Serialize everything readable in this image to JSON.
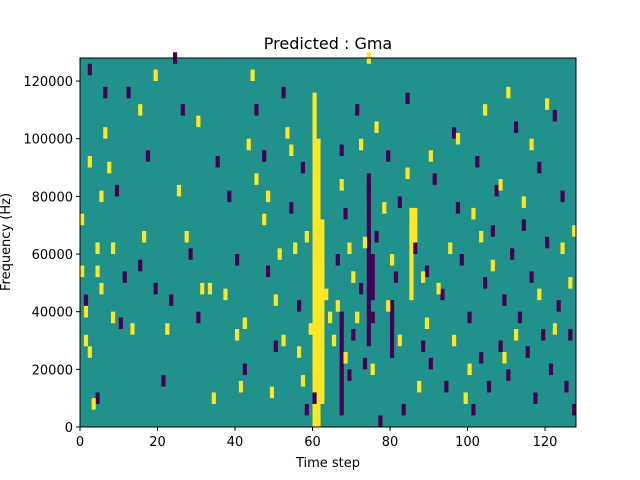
{
  "chart_data": {
    "type": "heatmap",
    "title": "Predicted : Gma",
    "xlabel": "Time step",
    "ylabel": "Frequency (Hz)",
    "xlim": [
      0,
      128
    ],
    "ylim": [
      0,
      128000
    ],
    "xticks": [
      0,
      20,
      40,
      60,
      80,
      100,
      120
    ],
    "yticks": [
      0,
      20000,
      40000,
      60000,
      80000,
      100000,
      120000
    ],
    "grid": false,
    "legend": "none",
    "background_value_color": "#21918c",
    "high_value_color": "#fde725",
    "low_value_color": "#440154",
    "cell_height_hz": 4000,
    "cells_high": [
      [
        0,
        70
      ],
      [
        0,
        52
      ],
      [
        1,
        28
      ],
      [
        1,
        38
      ],
      [
        2,
        90
      ],
      [
        2,
        24
      ],
      [
        3,
        6
      ],
      [
        4,
        52
      ],
      [
        4,
        60
      ],
      [
        5,
        46
      ],
      [
        5,
        78
      ],
      [
        6,
        100
      ],
      [
        7,
        88
      ],
      [
        8,
        36
      ],
      [
        8,
        60
      ],
      [
        13,
        32
      ],
      [
        15,
        108
      ],
      [
        16,
        64
      ],
      [
        19,
        120
      ],
      [
        22,
        32
      ],
      [
        25,
        80
      ],
      [
        27,
        64
      ],
      [
        30,
        104
      ],
      [
        31,
        46
      ],
      [
        33,
        46
      ],
      [
        34,
        8
      ],
      [
        37,
        44
      ],
      [
        40,
        30
      ],
      [
        41,
        12
      ],
      [
        42,
        34
      ],
      [
        43,
        96
      ],
      [
        44,
        120
      ],
      [
        45,
        84
      ],
      [
        47,
        70
      ],
      [
        48,
        78
      ],
      [
        49,
        10
      ],
      [
        50,
        42
      ],
      [
        51,
        58
      ],
      [
        52,
        28
      ],
      [
        53,
        100
      ],
      [
        54,
        94
      ],
      [
        55,
        60
      ],
      [
        56,
        24
      ],
      [
        57,
        14
      ],
      [
        58,
        64
      ],
      [
        59,
        32
      ],
      [
        60,
        20
      ],
      [
        61,
        0
      ],
      [
        62,
        52
      ],
      [
        63,
        44
      ],
      [
        64,
        36
      ],
      [
        65,
        28
      ],
      [
        66,
        40
      ],
      [
        67,
        82
      ],
      [
        68,
        22
      ],
      [
        69,
        60
      ],
      [
        70,
        50
      ],
      [
        71,
        36
      ],
      [
        72,
        96
      ],
      [
        73,
        62
      ],
      [
        74,
        126
      ],
      [
        75,
        18
      ],
      [
        76,
        102
      ],
      [
        78,
        74
      ],
      [
        79,
        40
      ],
      [
        80,
        56
      ],
      [
        82,
        28
      ],
      [
        84,
        86
      ],
      [
        85,
        66
      ],
      [
        86,
        72
      ],
      [
        87,
        12
      ],
      [
        88,
        50
      ],
      [
        89,
        34
      ],
      [
        90,
        92
      ],
      [
        92,
        46
      ],
      [
        95,
        60
      ],
      [
        96,
        28
      ],
      [
        97,
        98
      ],
      [
        99,
        8
      ],
      [
        100,
        18
      ],
      [
        101,
        72
      ],
      [
        103,
        64
      ],
      [
        104,
        108
      ],
      [
        106,
        54
      ],
      [
        108,
        82
      ],
      [
        109,
        22
      ],
      [
        110,
        114
      ],
      [
        112,
        30
      ],
      [
        114,
        76
      ],
      [
        116,
        96
      ],
      [
        118,
        44
      ],
      [
        120,
        110
      ],
      [
        122,
        32
      ],
      [
        124,
        60
      ],
      [
        126,
        48
      ],
      [
        127,
        66
      ]
    ],
    "cells_low": [
      [
        1,
        42
      ],
      [
        2,
        122
      ],
      [
        4,
        8
      ],
      [
        6,
        114
      ],
      [
        9,
        80
      ],
      [
        10,
        34
      ],
      [
        11,
        50
      ],
      [
        12,
        114
      ],
      [
        15,
        54
      ],
      [
        17,
        92
      ],
      [
        19,
        46
      ],
      [
        21,
        14
      ],
      [
        23,
        42
      ],
      [
        24,
        126
      ],
      [
        26,
        108
      ],
      [
        28,
        58
      ],
      [
        30,
        36
      ],
      [
        35,
        90
      ],
      [
        38,
        78
      ],
      [
        40,
        56
      ],
      [
        42,
        18
      ],
      [
        45,
        108
      ],
      [
        47,
        92
      ],
      [
        48,
        52
      ],
      [
        50,
        26
      ],
      [
        52,
        114
      ],
      [
        54,
        74
      ],
      [
        56,
        40
      ],
      [
        57,
        88
      ],
      [
        58,
        4
      ],
      [
        60,
        8
      ],
      [
        66,
        56
      ],
      [
        67,
        94
      ],
      [
        68,
        72
      ],
      [
        69,
        16
      ],
      [
        70,
        30
      ],
      [
        71,
        108
      ],
      [
        72,
        46
      ],
      [
        73,
        20
      ],
      [
        74,
        80
      ],
      [
        75,
        36
      ],
      [
        76,
        64
      ],
      [
        77,
        0
      ],
      [
        79,
        92
      ],
      [
        81,
        50
      ],
      [
        82,
        76
      ],
      [
        83,
        4
      ],
      [
        84,
        112
      ],
      [
        86,
        60
      ],
      [
        88,
        26
      ],
      [
        89,
        52
      ],
      [
        90,
        20
      ],
      [
        91,
        84
      ],
      [
        93,
        44
      ],
      [
        94,
        12
      ],
      [
        96,
        100
      ],
      [
        97,
        74
      ],
      [
        98,
        56
      ],
      [
        100,
        36
      ],
      [
        101,
        4
      ],
      [
        102,
        90
      ],
      [
        103,
        22
      ],
      [
        104,
        48
      ],
      [
        105,
        12
      ],
      [
        106,
        66
      ],
      [
        107,
        80
      ],
      [
        108,
        26
      ],
      [
        109,
        42
      ],
      [
        110,
        16
      ],
      [
        111,
        58
      ],
      [
        112,
        102
      ],
      [
        113,
        36
      ],
      [
        114,
        68
      ],
      [
        115,
        24
      ],
      [
        116,
        50
      ],
      [
        117,
        8
      ],
      [
        118,
        88
      ],
      [
        119,
        30
      ],
      [
        120,
        62
      ],
      [
        121,
        18
      ],
      [
        122,
        106
      ],
      [
        123,
        40
      ],
      [
        124,
        78
      ],
      [
        125,
        12
      ],
      [
        126,
        30
      ],
      [
        127,
        4
      ]
    ],
    "columns_high": [
      {
        "x": 60,
        "y_range": [
          0,
          116000
        ]
      },
      {
        "x": 61,
        "y_range": [
          0,
          100000
        ]
      },
      {
        "x": 62,
        "y_range": [
          8000,
          72000
        ]
      },
      {
        "x": 85,
        "y_range": [
          44000,
          76000
        ]
      },
      {
        "x": 86,
        "y_range": [
          60000,
          72000
        ]
      }
    ],
    "columns_low": [
      {
        "x": 74,
        "y_range": [
          28000,
          88000
        ]
      },
      {
        "x": 75,
        "y_range": [
          44000,
          60000
        ]
      },
      {
        "x": 67,
        "y_range": [
          4000,
          40000
        ]
      },
      {
        "x": 80,
        "y_range": [
          24000,
          44000
        ]
      }
    ]
  }
}
